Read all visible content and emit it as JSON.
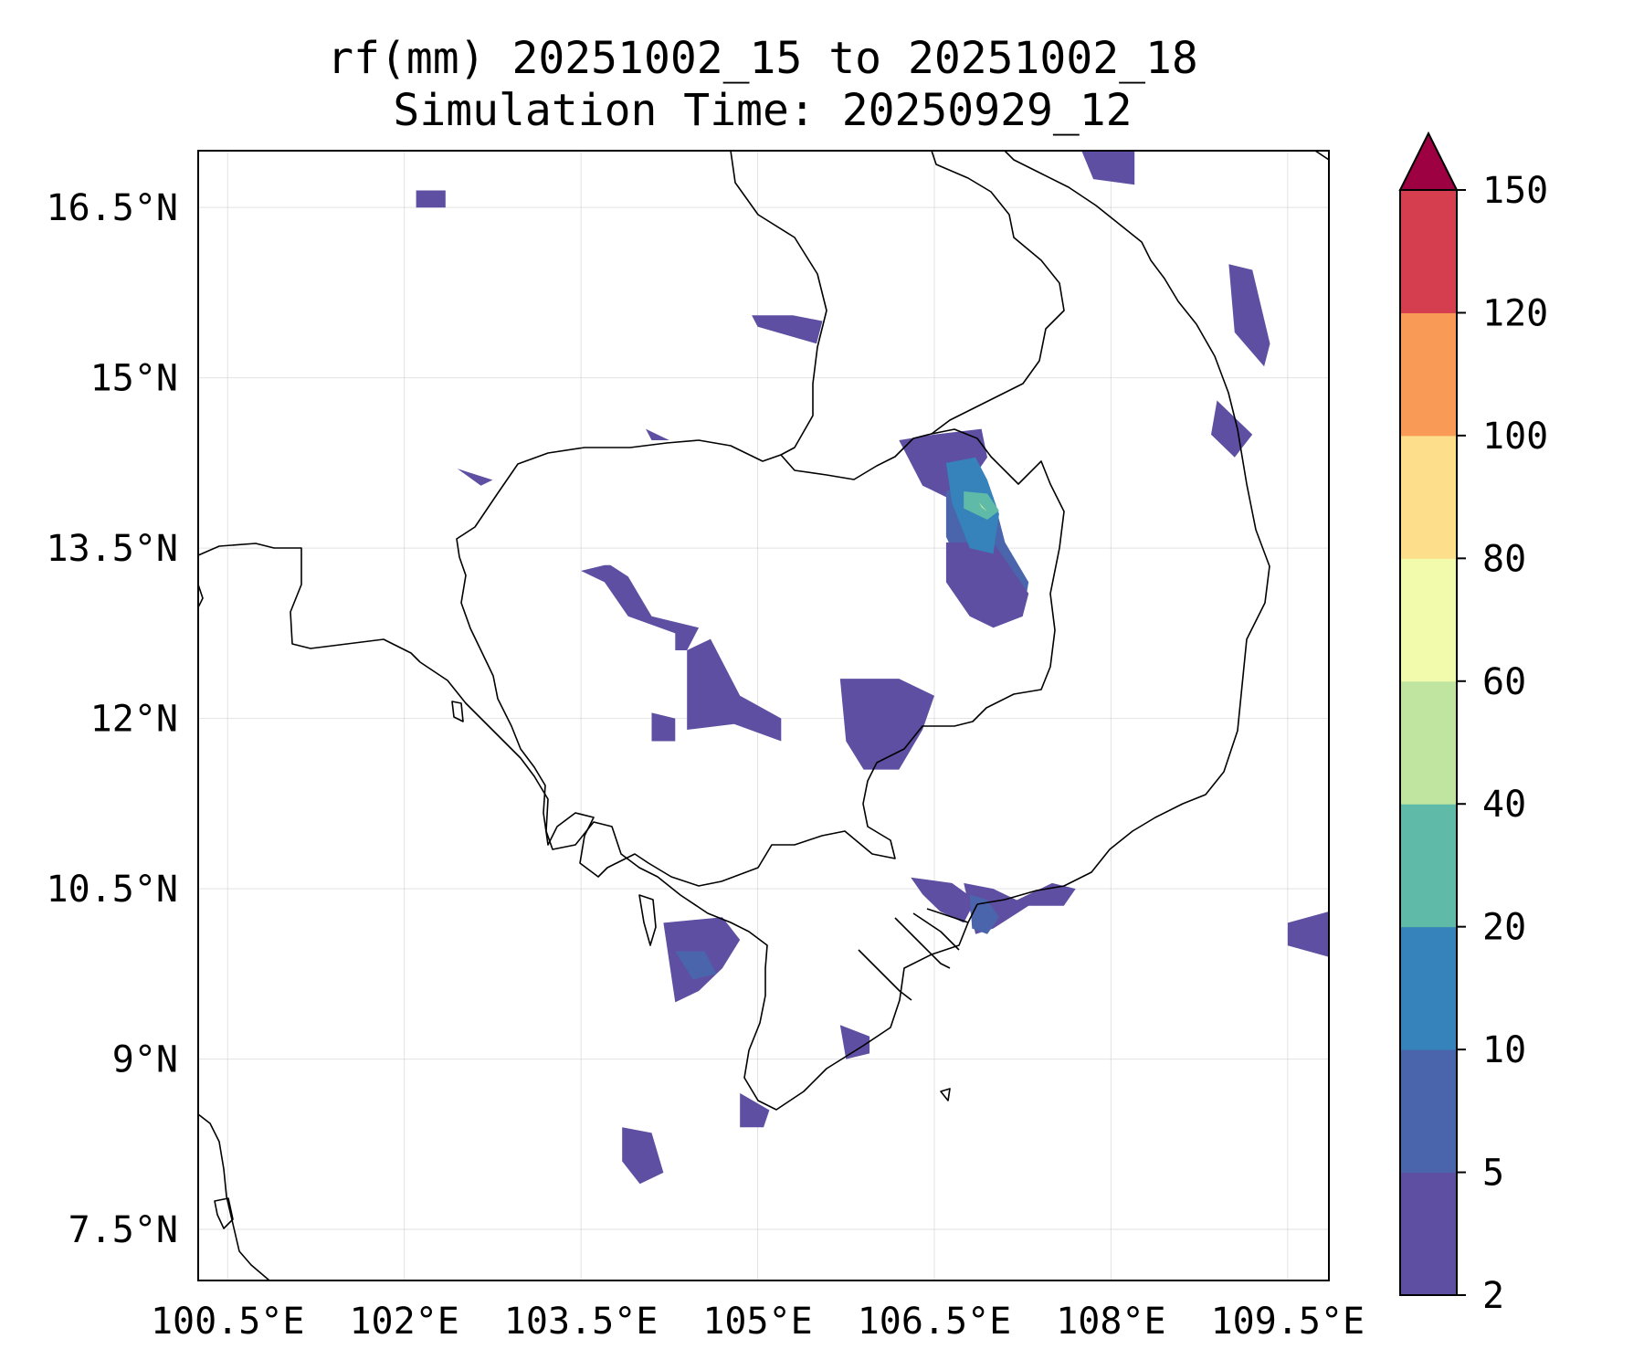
{
  "chart_data": {
    "type": "filled-contour-map",
    "title_line1": "rf(mm) 20251002_15 to 20251002_18",
    "title_line2": "Simulation Time: 20250929_12",
    "variable": "rf",
    "units": "mm",
    "lon_range": [
      100.25,
      109.85
    ],
    "lat_range": [
      7.05,
      17.0
    ],
    "lon_ticks": [
      100.5,
      102,
      103.5,
      105,
      106.5,
      108,
      109.5
    ],
    "lon_tick_labels": [
      "100.5°E",
      "102°E",
      "103.5°E",
      "105°E",
      "106.5°E",
      "108°E",
      "109.5°E"
    ],
    "lat_ticks": [
      7.5,
      9,
      10.5,
      12,
      13.5,
      15,
      16.5
    ],
    "lat_tick_labels": [
      "7.5°N",
      "9°N",
      "10.5°N",
      "12°N",
      "13.5°N",
      "15°N",
      "16.5°N"
    ],
    "grid": true,
    "colorbar": {
      "levels": [
        2,
        5,
        10,
        20,
        40,
        60,
        80,
        100,
        120,
        150
      ],
      "tick_labels": [
        "2",
        "5",
        "10",
        "20",
        "40",
        "60",
        "80",
        "100",
        "120",
        "150"
      ],
      "colors": [
        "#5e4fa2",
        "#4b65ad",
        "#3682ba",
        "#5fbaa8",
        "#bfe5a0",
        "#f2faac",
        "#fddf8b",
        "#f99a57",
        "#d53e4f"
      ],
      "extend_color": "#9e0142",
      "extend": "max",
      "orientation": "vertical"
    },
    "rain_areas": [
      {
        "level": 0,
        "lon": [
          103.5,
          103.7,
          103.75,
          103.9,
          104.1,
          104.5,
          104.4,
          104.3,
          104.3,
          103.9,
          103.7
        ],
        "lat": [
          13.3,
          13.35,
          13.35,
          13.25,
          12.9,
          12.8,
          12.6,
          12.6,
          12.75,
          12.9,
          13.2
        ]
      },
      {
        "level": 0,
        "lon": [
          104.4,
          104.6,
          104.85,
          105.2,
          105.2,
          104.8,
          104.4
        ],
        "lat": [
          12.6,
          12.7,
          12.2,
          12.0,
          11.8,
          11.95,
          11.9
        ]
      },
      {
        "level": 0,
        "lon": [
          104.1,
          104.3,
          104.3,
          104.1
        ],
        "lat": [
          12.05,
          12.0,
          11.8,
          11.8
        ]
      },
      {
        "level": 0,
        "lon": [
          105.7,
          106.2,
          106.5,
          106.4,
          106.2,
          105.9,
          105.75
        ],
        "lat": [
          12.35,
          12.35,
          12.2,
          11.9,
          11.55,
          11.55,
          11.8
        ]
      },
      {
        "level": 0,
        "lon": [
          106.2,
          106.5,
          106.9,
          106.95,
          106.75,
          106.6,
          106.4
        ],
        "lat": [
          14.45,
          14.5,
          14.55,
          14.3,
          14.0,
          13.95,
          14.05
        ]
      },
      {
        "level": 1,
        "lon": [
          106.6,
          106.9,
          107.0,
          107.1,
          107.3,
          107.25,
          107.0,
          106.85,
          106.6
        ],
        "lat": [
          14.0,
          14.1,
          13.95,
          13.55,
          13.2,
          12.9,
          12.8,
          13.05,
          13.6
        ]
      },
      {
        "level": 0,
        "lon": [
          106.6,
          107.0,
          107.3,
          107.25,
          107.0,
          106.8,
          106.6
        ],
        "lat": [
          13.55,
          13.55,
          13.1,
          12.9,
          12.8,
          12.9,
          13.2
        ]
      },
      {
        "level": 2,
        "lon": [
          106.6,
          106.85,
          106.95,
          107.05,
          107.0,
          106.8,
          106.65
        ],
        "lat": [
          14.25,
          14.3,
          14.1,
          13.8,
          13.45,
          13.5,
          13.9
        ]
      },
      {
        "level": 3,
        "lon": [
          106.75,
          106.95,
          107.05,
          106.95,
          106.75
        ],
        "lat": [
          14.0,
          13.98,
          13.83,
          13.75,
          13.85
        ]
      },
      {
        "level": 4,
        "lon": [
          106.88,
          106.95,
          106.9
        ],
        "lat": [
          13.9,
          13.82,
          13.86
        ]
      },
      {
        "level": 0,
        "lon": [
          104.05,
          104.25,
          104.1
        ],
        "lat": [
          14.55,
          14.45,
          14.45
        ]
      },
      {
        "level": 0,
        "lon": [
          102.1,
          102.35,
          102.35,
          102.1
        ],
        "lat": [
          16.65,
          16.65,
          16.5,
          16.5
        ]
      },
      {
        "level": 0,
        "lon": [
          104.95,
          105.3,
          105.55,
          105.5,
          105.0
        ],
        "lat": [
          15.55,
          15.55,
          15.5,
          15.3,
          15.45
        ]
      },
      {
        "level": 0,
        "lon": [
          102.45,
          102.75,
          102.65
        ],
        "lat": [
          14.2,
          14.1,
          14.05
        ]
      },
      {
        "level": 0,
        "lon": [
          104.2,
          104.7,
          104.85,
          104.7,
          104.5,
          104.3
        ],
        "lat": [
          10.2,
          10.25,
          10.05,
          9.8,
          9.6,
          9.5
        ]
      },
      {
        "level": 1,
        "lon": [
          104.3,
          104.55,
          104.65,
          104.45
        ],
        "lat": [
          9.95,
          9.95,
          9.75,
          9.7
        ]
      },
      {
        "level": 0,
        "lon": [
          106.3,
          106.65,
          106.85,
          106.75,
          106.55,
          106.4
        ],
        "lat": [
          10.6,
          10.55,
          10.4,
          10.2,
          10.3,
          10.45
        ]
      },
      {
        "level": 0,
        "lon": [
          106.75,
          107.0,
          107.2,
          107.5,
          107.7,
          107.6,
          107.3,
          107.0,
          106.85
        ],
        "lat": [
          10.55,
          10.5,
          10.4,
          10.55,
          10.5,
          10.35,
          10.35,
          10.15,
          10.1
        ]
      },
      {
        "level": 1,
        "lon": [
          106.8,
          106.95,
          107.05,
          106.95,
          106.82
        ],
        "lat": [
          10.45,
          10.4,
          10.25,
          10.1,
          10.15
        ]
      },
      {
        "level": 0,
        "lon": [
          105.7,
          105.95,
          105.95,
          105.75
        ],
        "lat": [
          9.3,
          9.2,
          9.05,
          9.0
        ]
      },
      {
        "level": 0,
        "lon": [
          104.85,
          105.1,
          105.05,
          104.85
        ],
        "lat": [
          8.7,
          8.55,
          8.4,
          8.4
        ]
      },
      {
        "level": 0,
        "lon": [
          103.85,
          104.1,
          104.2,
          104.0,
          103.85
        ],
        "lat": [
          8.4,
          8.35,
          8.0,
          7.9,
          8.1
        ]
      },
      {
        "level": 0,
        "lon": [
          108.9,
          109.2,
          109.05,
          108.85
        ],
        "lat": [
          14.8,
          14.5,
          14.3,
          14.5
        ]
      },
      {
        "level": 0,
        "lon": [
          109.0,
          109.2,
          109.35,
          109.3,
          109.05
        ],
        "lat": [
          16.0,
          15.95,
          15.3,
          15.1,
          15.4
        ]
      },
      {
        "level": 0,
        "lon": [
          109.5,
          109.85,
          109.85,
          109.5
        ],
        "lat": [
          10.2,
          10.3,
          9.9,
          10.0
        ]
      },
      {
        "level": 0,
        "lon": [
          107.75,
          108.2,
          108.2,
          107.85
        ],
        "lat": [
          17.0,
          17.0,
          16.7,
          16.75
        ]
      }
    ]
  }
}
